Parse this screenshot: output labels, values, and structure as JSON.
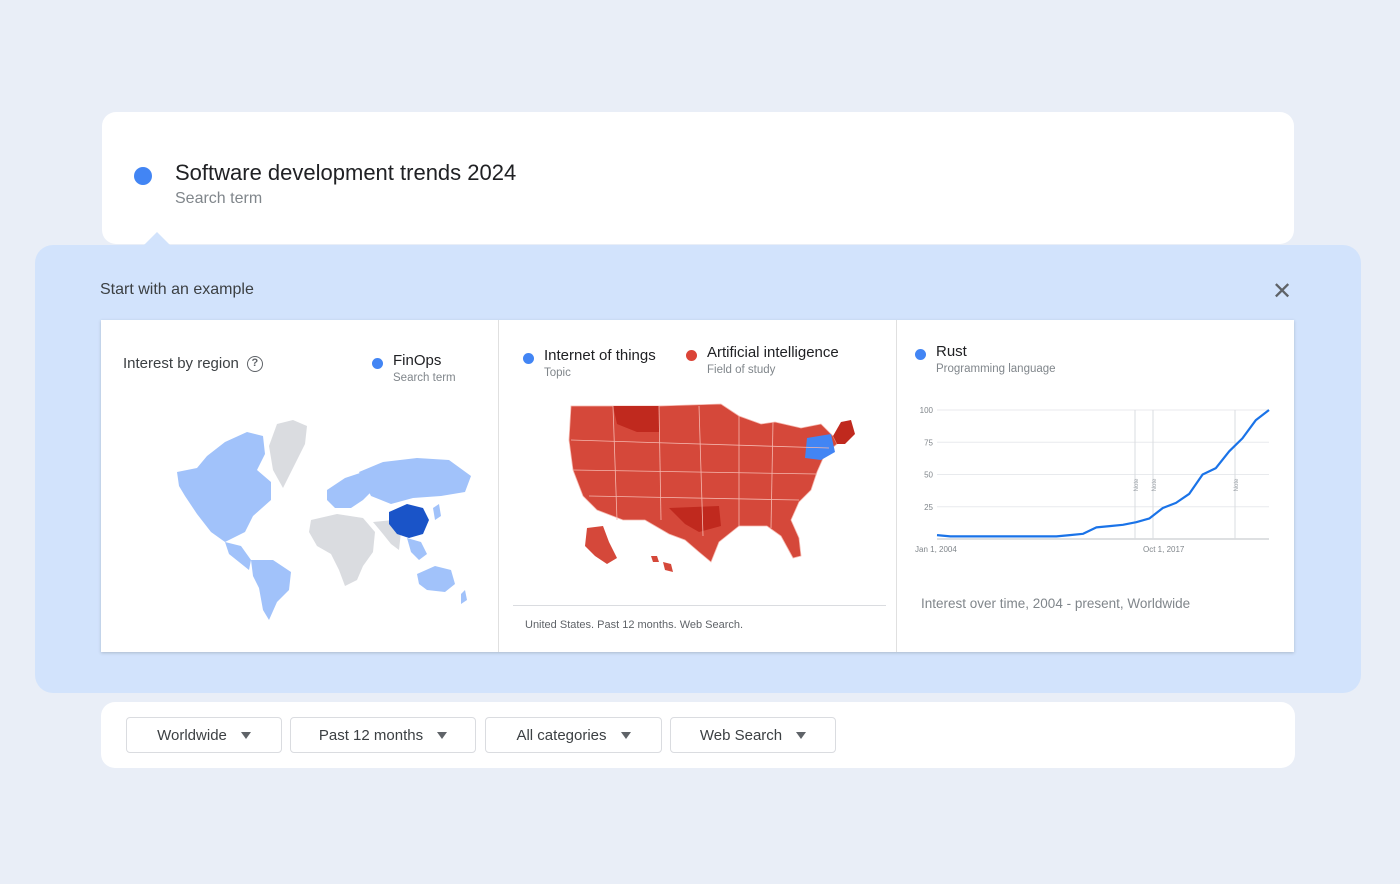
{
  "search_term": {
    "title": "Software development trends 2024",
    "subtitle": "Search term",
    "color": "#4285f4"
  },
  "examples": {
    "title": "Start with an example",
    "close_icon": "close-icon",
    "cards": [
      {
        "heading": "Interest by region",
        "help_icon": "help-icon",
        "legend": [
          {
            "name": "FinOps",
            "sub": "Search term",
            "color": "#4285f4"
          }
        ]
      },
      {
        "legend": [
          {
            "name": "Internet of things",
            "sub": "Topic",
            "color": "#4285f4"
          },
          {
            "name": "Artificial intelligence",
            "sub": "Field of study",
            "color": "#db4437"
          }
        ],
        "footer": "United States. Past 12 months. Web Search."
      },
      {
        "legend": [
          {
            "name": "Rust",
            "sub": "Programming language",
            "color": "#4285f4"
          }
        ],
        "footer": "Interest over time, 2004 - present, Worldwide"
      }
    ]
  },
  "chart_data": {
    "type": "line",
    "series": [
      {
        "name": "Rust",
        "values": [
          3,
          2,
          2,
          2,
          2,
          2,
          2,
          2,
          2,
          2,
          3,
          4,
          9,
          10,
          11,
          13,
          16,
          24,
          28,
          35,
          50,
          55,
          68,
          78,
          92,
          100
        ]
      }
    ],
    "x_labels": [
      "Jan 1, 2004",
      "Oct 1, 2017"
    ],
    "y_ticks": [
      25,
      50,
      75,
      100
    ],
    "ylim": [
      0,
      100
    ],
    "annotation_label": "Note",
    "color": "#1a73e8"
  },
  "filters": [
    {
      "label": "Worldwide"
    },
    {
      "label": "Past 12 months"
    },
    {
      "label": "All categories"
    },
    {
      "label": "Web Search"
    }
  ]
}
